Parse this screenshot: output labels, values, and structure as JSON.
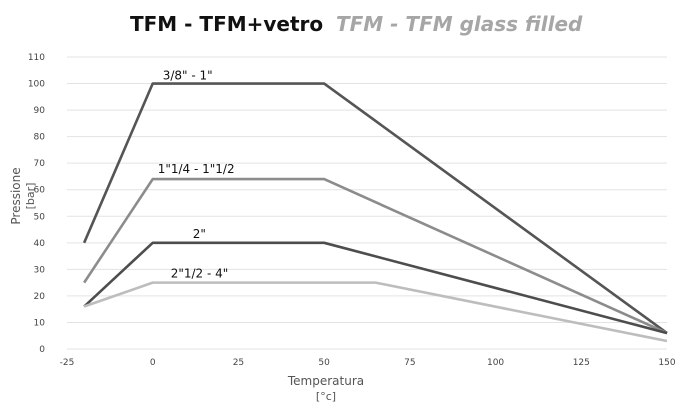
{
  "chart_data": {
    "type": "line",
    "title": "TFM - TFM+vetro",
    "subtitle": "TFM - TFM glass filled",
    "xlabel": "Temperatura",
    "xunit": "[°c]",
    "ylabel": "Pressione",
    "yunit": "[bar]",
    "xlim": [
      -25,
      150
    ],
    "ylim": [
      0,
      110
    ],
    "xticks": [
      -25,
      0,
      25,
      50,
      75,
      100,
      125,
      150
    ],
    "yticks": [
      0,
      10,
      20,
      30,
      40,
      50,
      60,
      70,
      80,
      90,
      100,
      110
    ],
    "grid": "horizontal",
    "series": [
      {
        "name": "3/8\" - 1\"",
        "color": "#555555",
        "x": [
          -20,
          0,
          50,
          150
        ],
        "y": [
          40,
          100,
          100,
          6
        ]
      },
      {
        "name": "1\"1/4 - 1\"1/2",
        "color": "#8c8c8c",
        "x": [
          -20,
          0,
          50,
          150
        ],
        "y": [
          25,
          64,
          64,
          6
        ]
      },
      {
        "name": "2\"",
        "color": "#4d4d4d",
        "x": [
          -20,
          0,
          50,
          150
        ],
        "y": [
          16,
          40,
          40,
          6
        ]
      },
      {
        "name": "2\"1/2 - 4\"",
        "color": "#bdbdbd",
        "x": [
          -20,
          0,
          65,
          150
        ],
        "y": [
          16,
          25,
          25,
          3
        ]
      }
    ]
  }
}
